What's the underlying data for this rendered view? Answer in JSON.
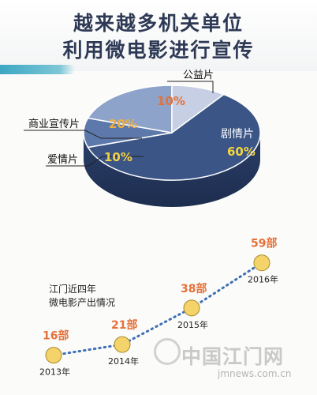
{
  "title": {
    "line1": "越来越多机关单位",
    "line2": "利用微电影进行宣传"
  },
  "chart_data": [
    {
      "type": "pie",
      "slices": [
        {
          "label": "剧情片",
          "value": 60,
          "value_label": "60%",
          "color": "#3a5586"
        },
        {
          "label": "爱情片",
          "value": 10,
          "value_label": "10%",
          "color": "#5d78aa"
        },
        {
          "label": "商业宣传片",
          "value": 20,
          "value_label": "20%",
          "color": "#8ea3c9"
        },
        {
          "label": "公益片",
          "value": 10,
          "value_label": "10%",
          "color": "#c6cfe3"
        }
      ]
    },
    {
      "type": "line",
      "note_line1": "江门近四年",
      "note_line2": "微电影产出情况",
      "x": [
        "2013年",
        "2014年",
        "2015年",
        "2016年"
      ],
      "values": [
        16,
        21,
        38,
        59
      ],
      "value_labels": [
        "16部",
        "21部",
        "38部",
        "59部"
      ],
      "colors": {
        "marker": "#f5d36b",
        "line": "#3f6fb5",
        "value": "#e4713a"
      }
    }
  ],
  "watermark": {
    "name": "中国江门网",
    "url": "jmnews.com.cn"
  }
}
